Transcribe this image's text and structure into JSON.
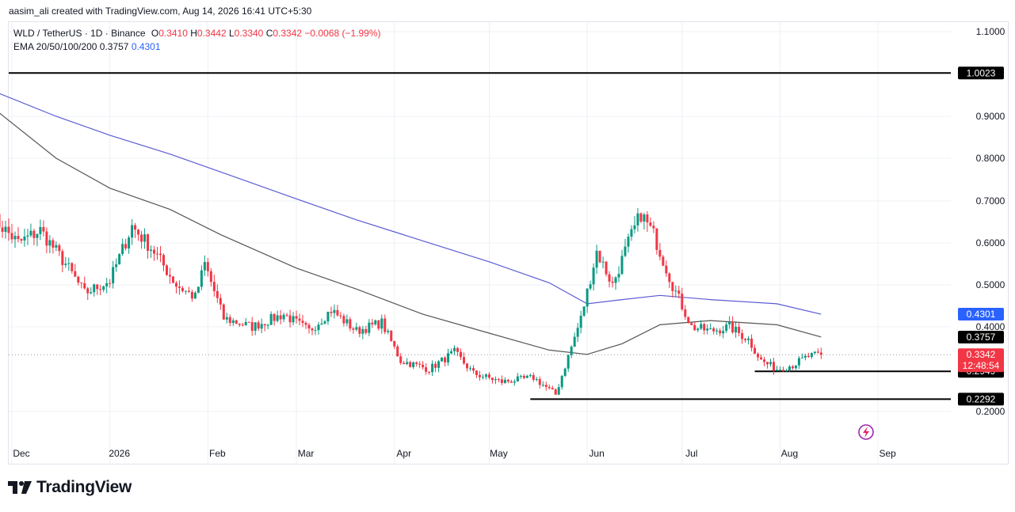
{
  "credit": "aasim_ali created with TradingView.com, Aug 14, 2026 16:41 UTC+5:30",
  "legend": {
    "symbol": "WLD / TetherUS · 1D · Binance",
    "o_label": "O",
    "o_value": "0.3410",
    "h_label": "H",
    "h_value": "0.3442",
    "l_label": "L",
    "l_value": "0.3340",
    "c_label": "C",
    "c_value": "0.3342",
    "change": "−0.0068 (−1.99%)",
    "ema_label": "EMA 20/50/100/200",
    "ema_val_1": "0.3757",
    "ema_val_2": "0.4301"
  },
  "logo": {
    "text": "TradingView",
    "icon": "tradingview-logo-icon"
  },
  "colors": {
    "up": "#089981",
    "down": "#f23645",
    "ema_a": "#555555",
    "ema_b": "#5b5bd6",
    "badge_blue": "#2962ff",
    "badge_black": "#000000",
    "badge_red": "#f23645"
  },
  "chart_data": {
    "type": "candlestick",
    "title": "WLD / TetherUS · 1D · Binance",
    "y_ticks": [
      "1.1000",
      "0.9000",
      "0.8000",
      "0.7000",
      "0.6000",
      "0.5000",
      "0.4000",
      "0.2000"
    ],
    "ylim": [
      0.18,
      1.13
    ],
    "x_ticks": [
      "Dec",
      "2026",
      "Feb",
      "Mar",
      "Apr",
      "May",
      "Jun",
      "Jul",
      "Aug",
      "Sep"
    ],
    "xlim": [
      "2025-12-01",
      "2026-09-16"
    ],
    "grid": true,
    "horizontal_levels": [
      {
        "value": 1.0023,
        "label": "1.0023",
        "start": "2025-11-25",
        "end": "axis"
      },
      {
        "value": 0.2949,
        "label": "0.2949",
        "start": "2026-07-24",
        "end": "axis"
      },
      {
        "value": 0.2292,
        "label": "0.2292",
        "start": "2026-05-14",
        "end": "axis"
      }
    ],
    "price_badges": [
      {
        "value": 0.4301,
        "label": "0.4301",
        "color": "#2962ff"
      },
      {
        "value": 0.3757,
        "label": "0.3757",
        "color": "#000000"
      },
      {
        "value": 0.3342,
        "label": "0.3342",
        "countdown": "12:48:54",
        "color": "#f23645"
      }
    ],
    "last_close": 0.3342,
    "ema_series": [
      {
        "value": 0.4301,
        "color": "#5b5bd6",
        "points": [
          [
            "2025-11-25",
            0.96
          ],
          [
            "2025-12-15",
            0.9
          ],
          [
            "2026-01-01",
            0.855
          ],
          [
            "2026-01-20",
            0.81
          ],
          [
            "2026-02-10",
            0.755
          ],
          [
            "2026-03-01",
            0.705
          ],
          [
            "2026-03-20",
            0.655
          ],
          [
            "2026-04-10",
            0.605
          ],
          [
            "2026-05-01",
            0.555
          ],
          [
            "2026-05-20",
            0.505
          ],
          [
            "2026-06-01",
            0.455
          ],
          [
            "2026-06-12",
            0.465
          ],
          [
            "2026-06-24",
            0.475
          ],
          [
            "2026-07-10",
            0.465
          ],
          [
            "2026-07-31",
            0.455
          ],
          [
            "2026-08-14",
            0.43
          ]
        ]
      },
      {
        "value": 0.3757,
        "color": "#555555",
        "points": [
          [
            "2025-11-25",
            0.92
          ],
          [
            "2025-12-15",
            0.8
          ],
          [
            "2026-01-01",
            0.73
          ],
          [
            "2026-01-20",
            0.68
          ],
          [
            "2026-02-05",
            0.62
          ],
          [
            "2026-03-01",
            0.54
          ],
          [
            "2026-03-20",
            0.49
          ],
          [
            "2026-04-10",
            0.43
          ],
          [
            "2026-05-01",
            0.385
          ],
          [
            "2026-05-20",
            0.345
          ],
          [
            "2026-06-01",
            0.335
          ],
          [
            "2026-06-12",
            0.36
          ],
          [
            "2026-06-24",
            0.405
          ],
          [
            "2026-07-10",
            0.415
          ],
          [
            "2026-07-31",
            0.405
          ],
          [
            "2026-08-14",
            0.376
          ]
        ]
      }
    ],
    "price_path": [
      [
        "2025-11-25",
        0.66
      ],
      [
        "2025-12-03",
        0.6
      ],
      [
        "2025-12-10",
        0.63
      ],
      [
        "2025-12-18",
        0.55
      ],
      [
        "2025-12-24",
        0.48
      ],
      [
        "2026-01-01",
        0.51
      ],
      [
        "2026-01-08",
        0.64
      ],
      [
        "2026-01-15",
        0.58
      ],
      [
        "2026-01-22",
        0.5
      ],
      [
        "2026-01-28",
        0.47
      ],
      [
        "2026-01-31",
        0.55
      ],
      [
        "2026-02-06",
        0.42
      ],
      [
        "2026-02-15",
        0.4
      ],
      [
        "2026-02-25",
        0.43
      ],
      [
        "2026-03-05",
        0.39
      ],
      [
        "2026-03-12",
        0.44
      ],
      [
        "2026-03-20",
        0.39
      ],
      [
        "2026-03-28",
        0.41
      ],
      [
        "2026-04-03",
        0.32
      ],
      [
        "2026-04-12",
        0.3
      ],
      [
        "2026-04-20",
        0.34
      ],
      [
        "2026-04-26",
        0.29
      ],
      [
        "2026-05-05",
        0.27
      ],
      [
        "2026-05-15",
        0.28
      ],
      [
        "2026-05-22",
        0.24
      ],
      [
        "2026-05-30",
        0.42
      ],
      [
        "2026-06-04",
        0.58
      ],
      [
        "2026-06-09",
        0.5
      ],
      [
        "2026-06-14",
        0.6
      ],
      [
        "2026-06-18",
        0.67
      ],
      [
        "2026-06-22",
        0.62
      ],
      [
        "2026-06-28",
        0.5
      ],
      [
        "2026-07-04",
        0.4
      ],
      [
        "2026-07-10",
        0.39
      ],
      [
        "2026-07-16",
        0.4
      ],
      [
        "2026-07-22",
        0.37
      ],
      [
        "2026-07-26",
        0.32
      ],
      [
        "2026-07-31",
        0.3
      ],
      [
        "2026-08-05",
        0.31
      ],
      [
        "2026-08-10",
        0.33
      ],
      [
        "2026-08-14",
        0.3342
      ]
    ]
  }
}
